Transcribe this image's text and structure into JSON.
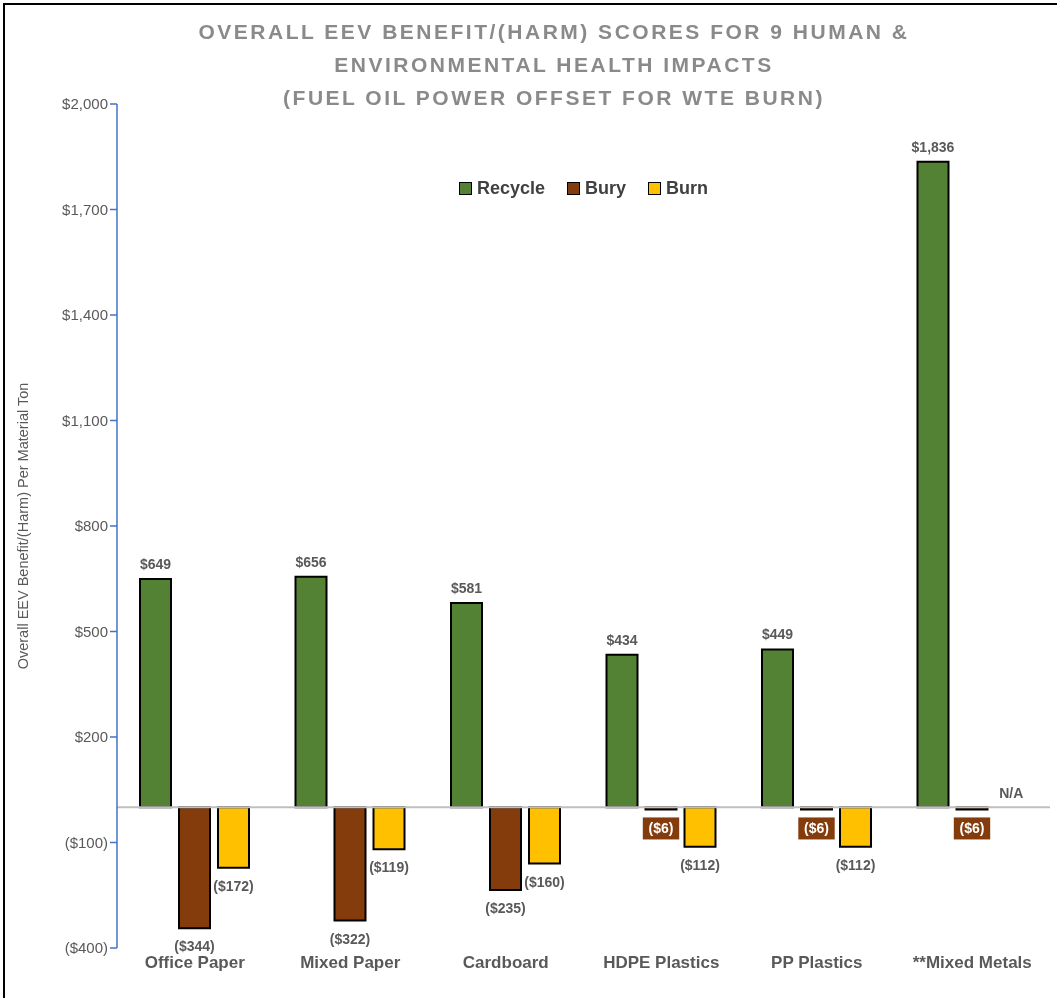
{
  "chart_data": {
    "type": "bar",
    "title": "OVERALL EEV BENEFIT/(HARM) SCORES FOR 9 HUMAN &\nENVIRONMENTAL HEALTH IMPACTS\n(FUEL OIL POWER OFFSET FOR WTE BURN)",
    "ylabel": "Overall EEV Benefit/(Harm) Per Material Ton",
    "categories": [
      "Office Paper",
      "Mixed Paper",
      "Cardboard",
      "HDPE Plastics",
      "PP Plastics",
      "**Mixed Metals"
    ],
    "series": [
      {
        "name": "Recycle",
        "color": "#548235",
        "values": [
          649,
          656,
          581,
          434,
          449,
          1836
        ],
        "value_labels": [
          "$649",
          "$656",
          "$581",
          "$434",
          "$449",
          "$1,836"
        ]
      },
      {
        "name": "Bury",
        "color": "#843c0c",
        "values": [
          -344,
          -322,
          -235,
          -6,
          -6,
          -6
        ],
        "value_labels": [
          "($344)",
          "($322)",
          "($235)",
          "($6)",
          "($6)",
          "($6)"
        ]
      },
      {
        "name": "Burn",
        "color": "#ffc000",
        "values": [
          -172,
          -119,
          -160,
          -112,
          -112,
          null
        ],
        "value_labels": [
          "($172)",
          "($119)",
          "($160)",
          "($112)",
          "($112)",
          "N/A"
        ]
      }
    ],
    "ylim": [
      -400,
      2000
    ],
    "yticks": [
      {
        "value": -400,
        "label": "($400)"
      },
      {
        "value": -100,
        "label": "($100)"
      },
      {
        "value": 200,
        "label": "$200"
      },
      {
        "value": 500,
        "label": "$500"
      },
      {
        "value": 800,
        "label": "$800"
      },
      {
        "value": 1100,
        "label": "$1,100"
      },
      {
        "value": 1400,
        "label": "$1,400"
      },
      {
        "value": 1700,
        "label": "$1,700"
      },
      {
        "value": 2000,
        "label": "$2,000"
      }
    ],
    "ref_lines": [
      {
        "axis": "y",
        "value": 0,
        "color": "#bfbfbf"
      }
    ],
    "legend": "top"
  }
}
